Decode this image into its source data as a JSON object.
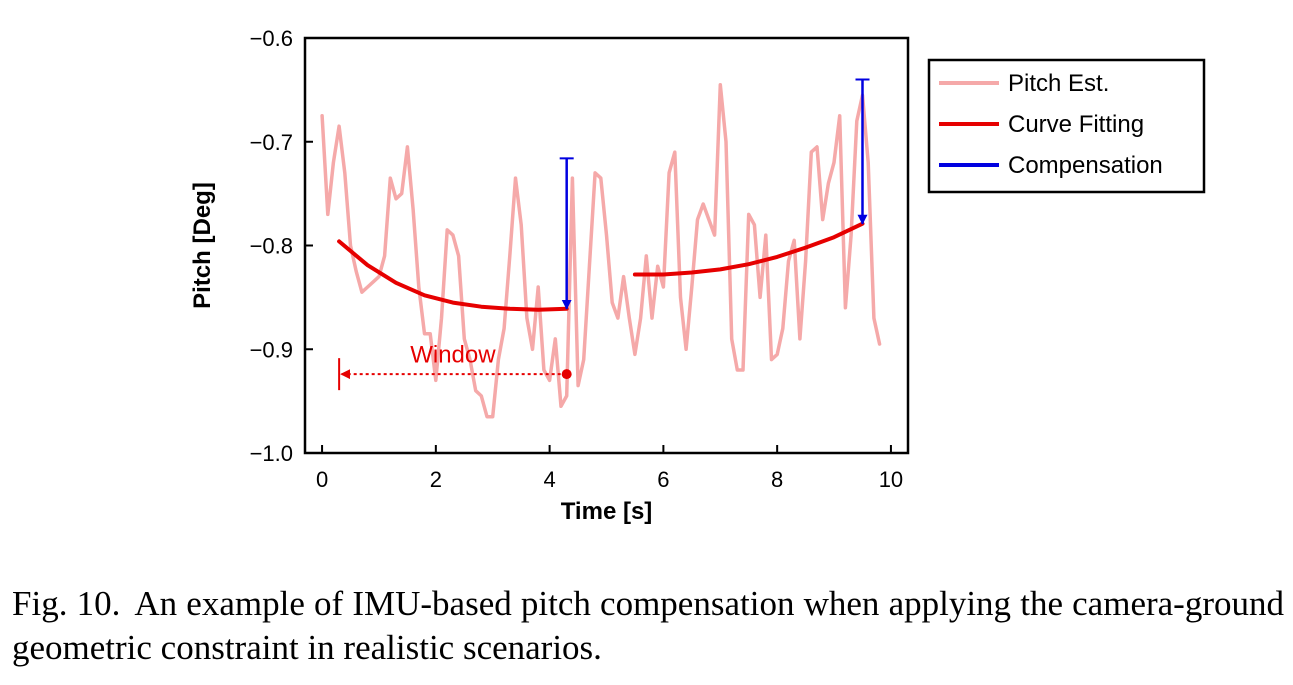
{
  "chart_data": {
    "type": "line",
    "xlabel": "Time [s]",
    "ylabel": "Pitch [Deg]",
    "xlim": [
      -0.3,
      10.3
    ],
    "ylim": [
      -1.0,
      -0.6
    ],
    "xticks": [
      0,
      2,
      4,
      6,
      8,
      10
    ],
    "yticks": [
      -0.6,
      -0.7,
      -0.8,
      -0.9,
      -1.0
    ],
    "xtick_labels": [
      "0",
      "2",
      "4",
      "6",
      "8",
      "10"
    ],
    "ytick_labels": [
      "−0.6",
      "−0.7",
      "−0.8",
      "−0.9",
      "−1.0"
    ],
    "grid": false,
    "legend_position": "outside-right-top",
    "legend": [
      {
        "label": "Pitch Est.",
        "color": "#f5a9a9"
      },
      {
        "label": "Curve Fitting",
        "color": "#e60000"
      },
      {
        "label": "Compensation",
        "color": "#0000e0"
      }
    ],
    "series": [
      {
        "name": "Pitch Est.",
        "color": "#f5a9a9",
        "x": [
          0.0,
          0.1,
          0.2,
          0.3,
          0.4,
          0.5,
          0.6,
          0.7,
          0.8,
          0.9,
          1.0,
          1.1,
          1.2,
          1.3,
          1.4,
          1.5,
          1.6,
          1.7,
          1.8,
          1.9,
          2.0,
          2.1,
          2.2,
          2.3,
          2.4,
          2.5,
          2.6,
          2.7,
          2.8,
          2.9,
          3.0,
          3.1,
          3.2,
          3.3,
          3.4,
          3.5,
          3.6,
          3.7,
          3.8,
          3.9,
          4.0,
          4.1,
          4.2,
          4.3,
          4.4,
          4.5,
          4.6,
          4.7,
          4.8,
          4.9,
          5.0,
          5.1,
          5.2,
          5.3,
          5.4,
          5.5,
          5.6,
          5.7,
          5.8,
          5.9,
          6.0,
          6.1,
          6.2,
          6.3,
          6.4,
          6.5,
          6.6,
          6.7,
          6.8,
          6.9,
          7.0,
          7.1,
          7.2,
          7.3,
          7.4,
          7.5,
          7.6,
          7.7,
          7.8,
          7.9,
          8.0,
          8.1,
          8.2,
          8.3,
          8.4,
          8.5,
          8.6,
          8.7,
          8.8,
          8.9,
          9.0,
          9.1,
          9.2,
          9.3,
          9.4,
          9.5,
          9.6,
          9.7,
          9.8
        ],
        "y": [
          -0.675,
          -0.77,
          -0.72,
          -0.685,
          -0.73,
          -0.8,
          -0.825,
          -0.845,
          -0.84,
          -0.835,
          -0.83,
          -0.81,
          -0.735,
          -0.755,
          -0.75,
          -0.705,
          -0.765,
          -0.84,
          -0.885,
          -0.885,
          -0.93,
          -0.87,
          -0.785,
          -0.79,
          -0.81,
          -0.89,
          -0.91,
          -0.94,
          -0.945,
          -0.965,
          -0.965,
          -0.91,
          -0.88,
          -0.81,
          -0.735,
          -0.78,
          -0.87,
          -0.9,
          -0.84,
          -0.92,
          -0.93,
          -0.89,
          -0.955,
          -0.945,
          -0.735,
          -0.935,
          -0.91,
          -0.82,
          -0.73,
          -0.735,
          -0.79,
          -0.855,
          -0.87,
          -0.83,
          -0.87,
          -0.905,
          -0.87,
          -0.81,
          -0.87,
          -0.82,
          -0.84,
          -0.73,
          -0.71,
          -0.85,
          -0.9,
          -0.84,
          -0.775,
          -0.76,
          -0.775,
          -0.79,
          -0.645,
          -0.7,
          -0.89,
          -0.92,
          -0.92,
          -0.77,
          -0.78,
          -0.85,
          -0.79,
          -0.91,
          -0.905,
          -0.88,
          -0.815,
          -0.795,
          -0.89,
          -0.815,
          -0.71,
          -0.705,
          -0.775,
          -0.74,
          -0.72,
          -0.675,
          -0.86,
          -0.79,
          -0.68,
          -0.655,
          -0.72,
          -0.87,
          -0.895
        ]
      },
      {
        "name": "Curve Fitting",
        "color": "#e60000",
        "x": [
          0.3,
          0.8,
          1.3,
          1.8,
          2.3,
          2.8,
          3.3,
          3.8,
          4.3
        ],
        "y": [
          -0.796,
          -0.819,
          -0.836,
          -0.848,
          -0.855,
          -0.859,
          -0.861,
          -0.862,
          -0.861
        ]
      },
      {
        "name": "Curve Fitting",
        "color": "#e60000",
        "x": [
          5.5,
          6.0,
          6.5,
          7.0,
          7.5,
          8.0,
          8.5,
          9.0,
          9.5
        ],
        "y": [
          -0.828,
          -0.828,
          -0.826,
          -0.823,
          -0.818,
          -0.811,
          -0.802,
          -0.792,
          -0.779
        ]
      },
      {
        "name": "Compensation",
        "color": "#0000e0",
        "segments": [
          {
            "x": 4.3,
            "y_from": -0.716,
            "y_to": -0.861
          },
          {
            "x": 9.5,
            "y_from": -0.64,
            "y_to": -0.779
          }
        ]
      }
    ],
    "annotations": [
      {
        "text": "Window",
        "color": "#e60000",
        "x_from": 4.3,
        "x_to": 0.3,
        "y": -0.924,
        "text_x": 2.3,
        "text_y": -0.905
      }
    ]
  },
  "caption": {
    "figure_number": "Fig. 10.",
    "text": "An example of IMU-based pitch compensation when applying the camera-ground geometric constraint in realistic scenarios."
  }
}
